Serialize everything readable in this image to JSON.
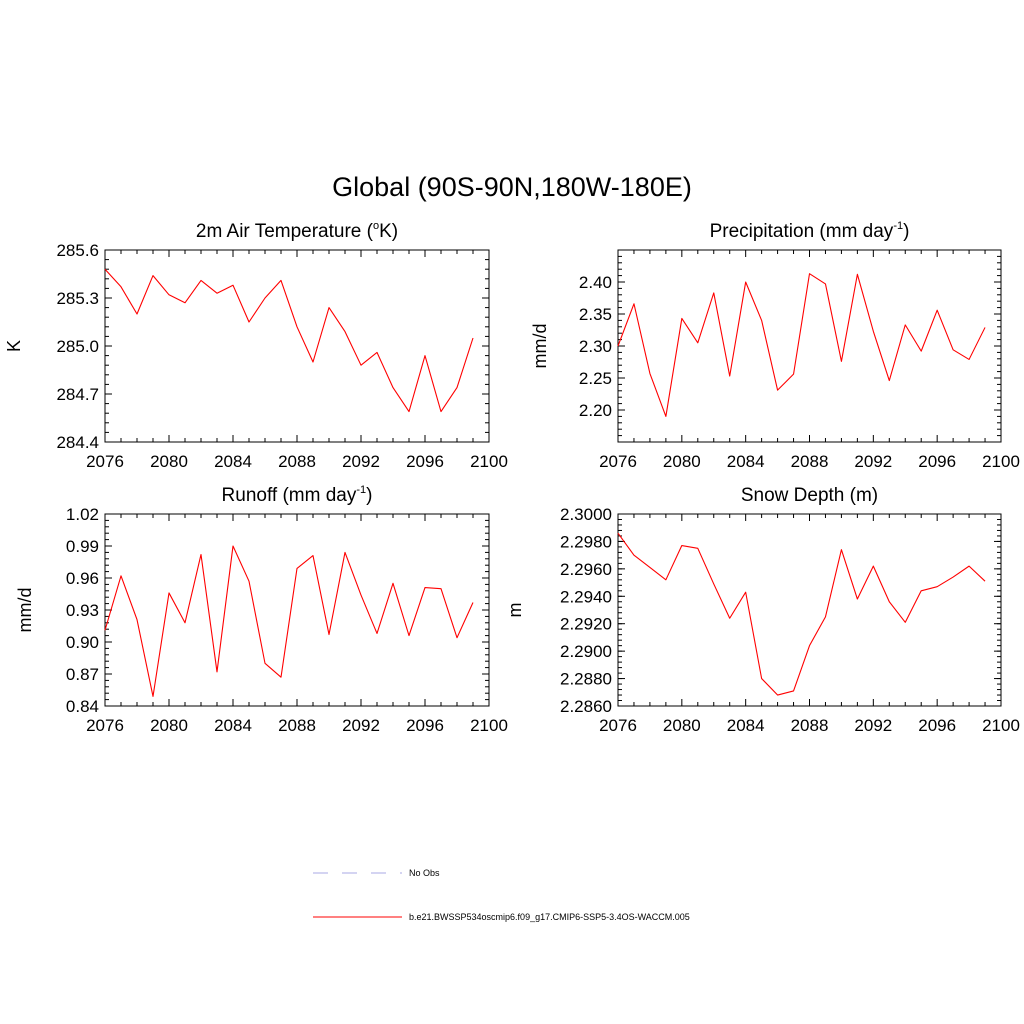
{
  "figure": {
    "title": "Global (90S-90N,180W-180E)"
  },
  "legend": {
    "entries": [
      {
        "label": "No Obs",
        "color": "#a9a9e6",
        "style": "dashed"
      },
      {
        "label": "b.e21.BWSSP534oscmip6.f09_g17.CMIP6-SSP5-3.4OS-WACCM.005",
        "color": "#ff0000",
        "style": "solid"
      }
    ]
  },
  "chart_data": [
    {
      "type": "line",
      "title": "2m Air Temperature (",
      "title_sup": "o",
      "title_pre_sup": "",
      "title_after": "K)",
      "ylabel": "K",
      "xlim": [
        2076,
        2100
      ],
      "ylim": [
        284.4,
        285.6
      ],
      "xticks": [
        "2076",
        "2080",
        "2084",
        "2088",
        "2092",
        "2096",
        "2100"
      ],
      "yticks": [
        "284.4",
        "284.7",
        "285.0",
        "285.3",
        "285.6"
      ],
      "series": [
        {
          "name": "b.e21.BWSSP534oscmip6.f09_g17.CMIP6-SSP5-3.4OS-WACCM.005",
          "color": "#ff0000",
          "x": [
            2076,
            2077,
            2078,
            2079,
            2080,
            2081,
            2082,
            2083,
            2084,
            2085,
            2086,
            2087,
            2088,
            2089,
            2090,
            2091,
            2092,
            2093,
            2094,
            2095,
            2096,
            2097,
            2098,
            2099
          ],
          "y": [
            285.48,
            285.37,
            285.2,
            285.44,
            285.32,
            285.27,
            285.41,
            285.33,
            285.38,
            285.15,
            285.3,
            285.41,
            285.12,
            284.9,
            285.24,
            285.09,
            284.88,
            284.96,
            284.74,
            284.59,
            284.94,
            284.59,
            284.74,
            285.05
          ]
        }
      ]
    },
    {
      "type": "line",
      "title": "Precipitation (mm day",
      "title_sup": "-1",
      "title_after": ")",
      "ylabel": "mm/d",
      "xlim": [
        2076,
        2100
      ],
      "ylim": [
        2.15,
        2.45
      ],
      "xticks": [
        "2076",
        "2080",
        "2084",
        "2088",
        "2092",
        "2096",
        "2100"
      ],
      "yticks": [
        "2.20",
        "2.25",
        "2.30",
        "2.35",
        "2.40"
      ],
      "series": [
        {
          "name": "b.e21.BWSSP534oscmip6.f09_g17.CMIP6-SSP5-3.4OS-WACCM.005",
          "color": "#ff0000",
          "x": [
            2076,
            2077,
            2078,
            2079,
            2080,
            2081,
            2082,
            2083,
            2084,
            2085,
            2086,
            2087,
            2088,
            2089,
            2090,
            2091,
            2092,
            2093,
            2094,
            2095,
            2096,
            2097,
            2098,
            2099
          ],
          "y": [
            2.3,
            2.366,
            2.257,
            2.19,
            2.343,
            2.305,
            2.383,
            2.253,
            2.4,
            2.34,
            2.231,
            2.256,
            2.413,
            2.397,
            2.276,
            2.412,
            2.323,
            2.246,
            2.333,
            2.292,
            2.356,
            2.294,
            2.279,
            2.329
          ]
        }
      ]
    },
    {
      "type": "line",
      "title": "Runoff (mm day",
      "title_sup": "-1",
      "title_after": ")",
      "ylabel": "mm/d",
      "xlim": [
        2076,
        2100
      ],
      "ylim": [
        0.84,
        1.02
      ],
      "xticks": [
        "2076",
        "2080",
        "2084",
        "2088",
        "2092",
        "2096",
        "2100"
      ],
      "yticks": [
        "0.84",
        "0.87",
        "0.90",
        "0.93",
        "0.96",
        "0.99",
        "1.02"
      ],
      "series": [
        {
          "name": "b.e21.BWSSP534oscmip6.f09_g17.CMIP6-SSP5-3.4OS-WACCM.005",
          "color": "#ff0000",
          "x": [
            2076,
            2077,
            2078,
            2079,
            2080,
            2081,
            2082,
            2083,
            2084,
            2085,
            2086,
            2087,
            2088,
            2089,
            2090,
            2091,
            2092,
            2093,
            2094,
            2095,
            2096,
            2097,
            2098,
            2099
          ],
          "y": [
            0.911,
            0.962,
            0.921,
            0.849,
            0.946,
            0.918,
            0.982,
            0.872,
            0.99,
            0.957,
            0.88,
            0.867,
            0.969,
            0.981,
            0.907,
            0.984,
            0.944,
            0.908,
            0.955,
            0.906,
            0.951,
            0.95,
            0.904,
            0.937
          ]
        }
      ]
    },
    {
      "type": "line",
      "title": "Snow Depth (m)",
      "title_sup": "",
      "title_after": "",
      "ylabel": "m",
      "xlim": [
        2076,
        2100
      ],
      "ylim": [
        2.286,
        2.3
      ],
      "xticks": [
        "2076",
        "2080",
        "2084",
        "2088",
        "2092",
        "2096",
        "2100"
      ],
      "yticks": [
        "2.2860",
        "2.2880",
        "2.2900",
        "2.2920",
        "2.2940",
        "2.2960",
        "2.2980",
        "2.3000"
      ],
      "series": [
        {
          "name": "b.e21.BWSSP534oscmip6.f09_g17.CMIP6-SSP5-3.4OS-WACCM.005",
          "color": "#ff0000",
          "x": [
            2076,
            2077,
            2078,
            2079,
            2080,
            2081,
            2082,
            2083,
            2084,
            2085,
            2086,
            2087,
            2088,
            2089,
            2090,
            2091,
            2092,
            2093,
            2094,
            2095,
            2096,
            2097,
            2098,
            2099
          ],
          "y": [
            2.2986,
            2.297,
            2.2961,
            2.2952,
            2.2977,
            2.2975,
            2.2949,
            2.2924,
            2.2943,
            2.288,
            2.2868,
            2.2871,
            2.2904,
            2.2925,
            2.2974,
            2.2938,
            2.2962,
            2.2936,
            2.2921,
            2.2944,
            2.2947,
            2.2954,
            2.2962,
            2.2951
          ]
        }
      ]
    }
  ]
}
